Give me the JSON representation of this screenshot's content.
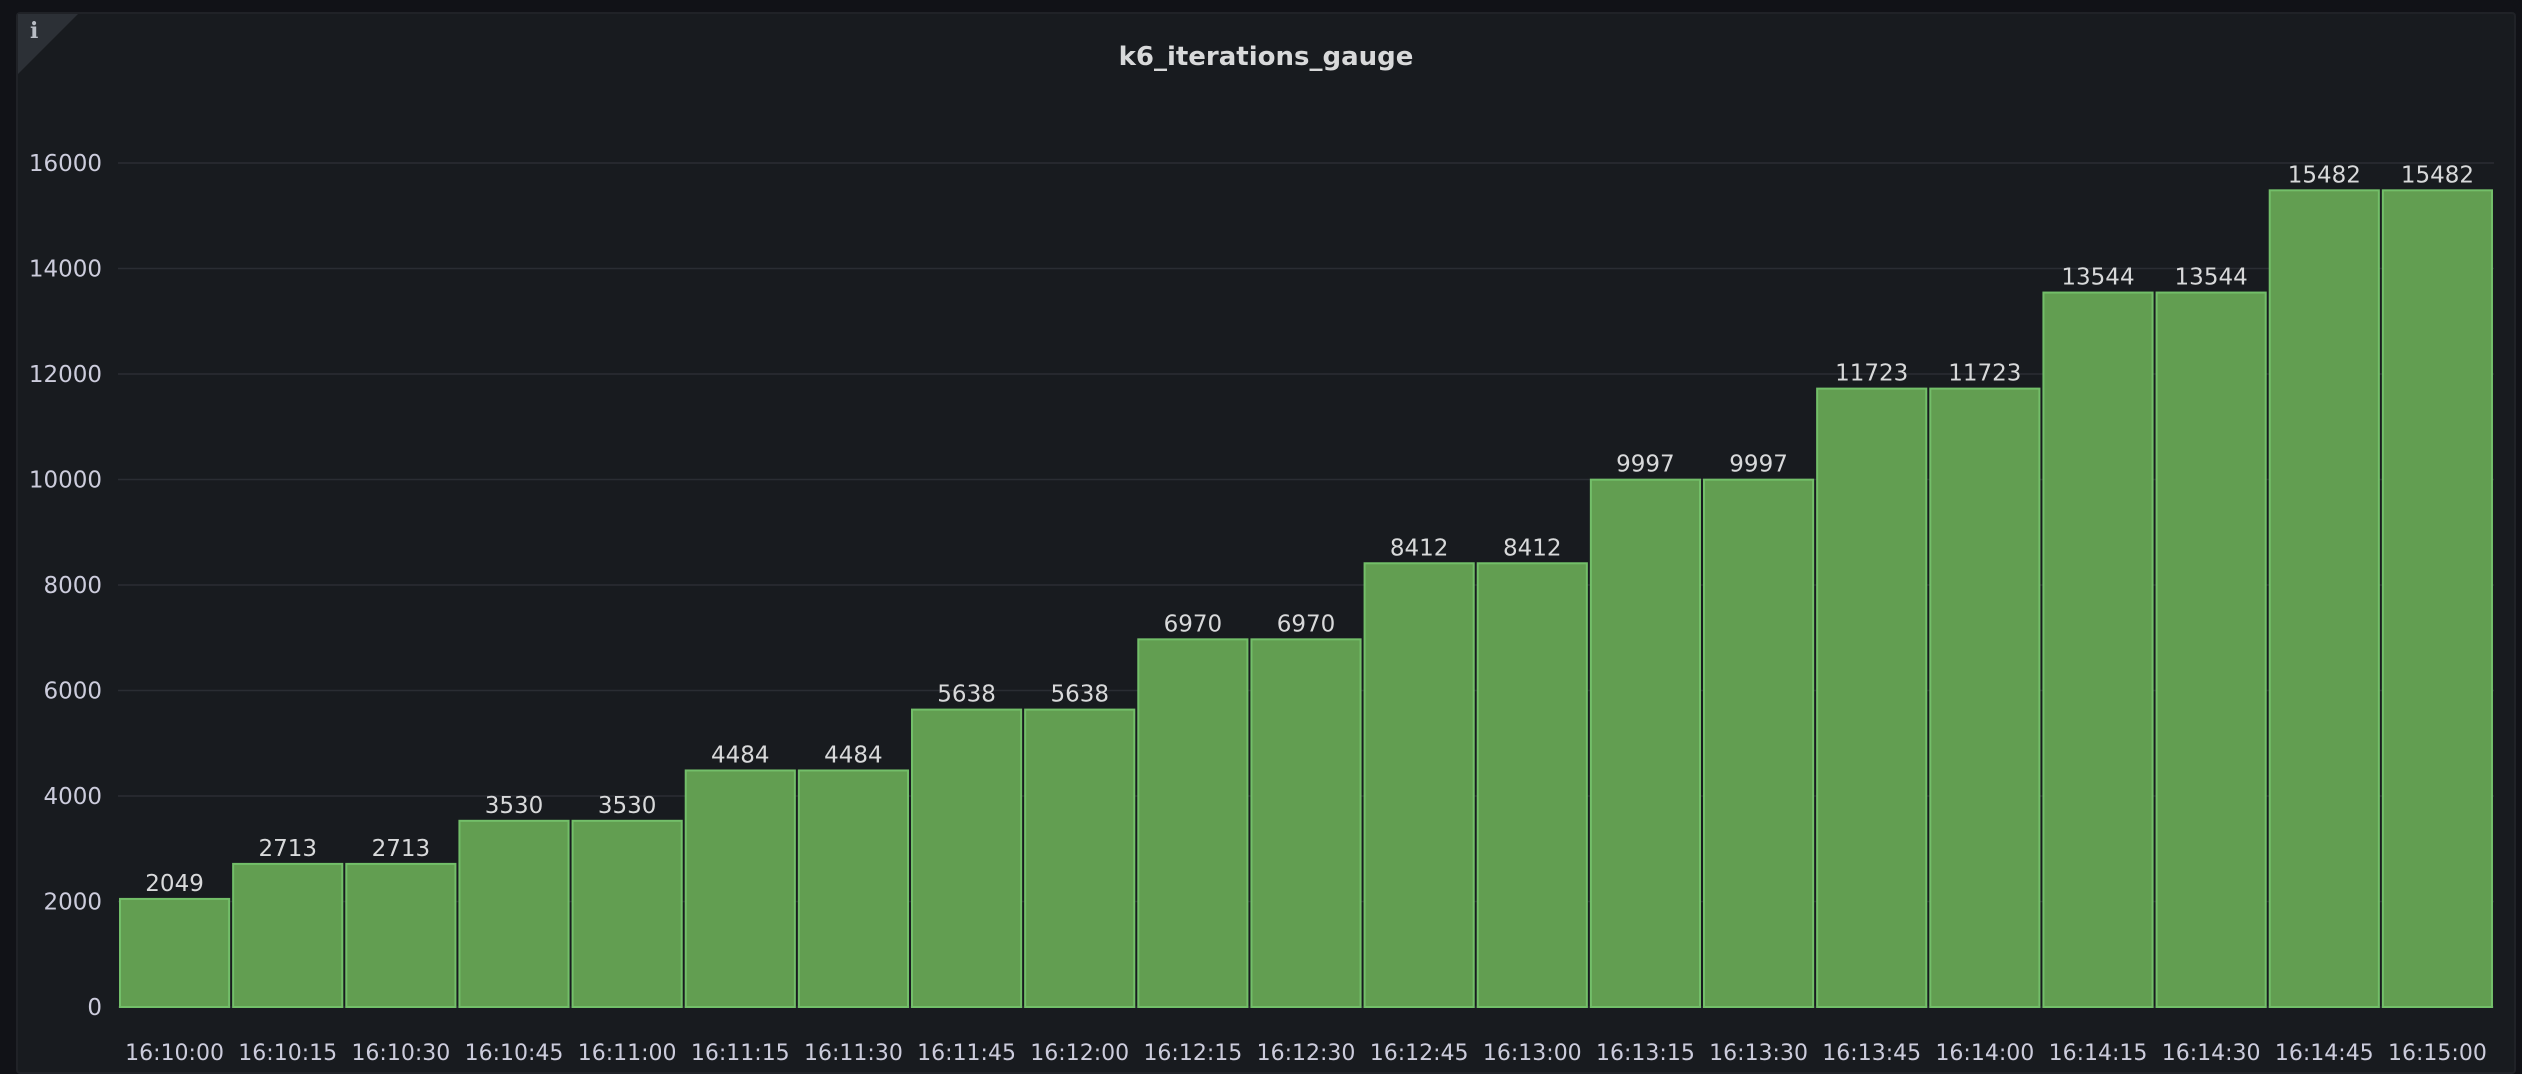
{
  "panel": {
    "title": "k6_iterations_gauge",
    "info_icon": "info-icon"
  },
  "chart_data": {
    "type": "bar",
    "title": "k6_iterations_gauge",
    "xlabel": "",
    "ylabel": "",
    "ylim": [
      0,
      16000
    ],
    "yticks": [
      0,
      2000,
      4000,
      6000,
      8000,
      10000,
      12000,
      14000,
      16000
    ],
    "grid": true,
    "legend": "none",
    "bar_color": "#629e51",
    "bar_border_color": "#73bf69",
    "categories": [
      "16:10:00",
      "16:10:15",
      "16:10:30",
      "16:10:45",
      "16:11:00",
      "16:11:15",
      "16:11:30",
      "16:11:45",
      "16:12:00",
      "16:12:15",
      "16:12:30",
      "16:12:45",
      "16:13:00",
      "16:13:15",
      "16:13:30",
      "16:13:45",
      "16:14:00",
      "16:14:15",
      "16:14:30",
      "16:14:45",
      "16:15:00"
    ],
    "values": [
      2049,
      2713,
      2713,
      3530,
      3530,
      4484,
      4484,
      5638,
      5638,
      6970,
      6970,
      8412,
      8412,
      9997,
      9997,
      11723,
      11723,
      13544,
      13544,
      15482,
      15482
    ]
  }
}
